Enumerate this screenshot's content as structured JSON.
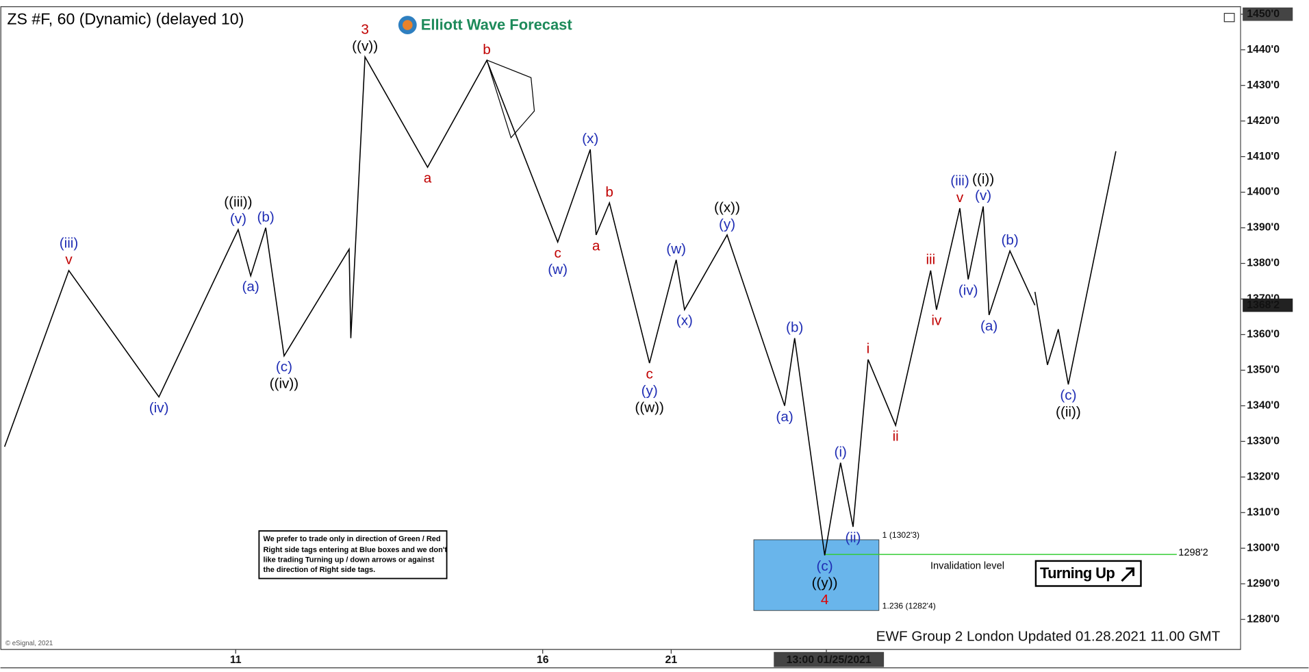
{
  "chart_data": {
    "type": "line",
    "title": "ZS #F, 60 (Dynamic) (delayed 10)",
    "logo": "Elliott Wave Forecast",
    "footer": "EWF Group 2 London Updated 01.28.2021 11.00 GMT",
    "credit": "© eSignal, 2021",
    "note": [
      "We prefer to trade only in direction of Green / Red",
      "Right side tags entering at Blue boxes and we don't",
      "like trading Turning up / down arrows or against",
      "the direction of Right side tags."
    ],
    "signal": "Turning Up",
    "xlim": [
      0,
      371.75
    ],
    "ylim": [
      1280,
      1450
    ],
    "xticks": [
      {
        "value": 70.5,
        "label": "11"
      },
      {
        "value": 162.5,
        "label": "16"
      },
      {
        "value": 201,
        "label": "21"
      },
      {
        "value": 247.5,
        "label": "13:00 01/25/2021"
      }
    ],
    "yticks": [
      {
        "value": 1280,
        "label": "1280'0"
      },
      {
        "value": 1290,
        "label": "1290'0"
      },
      {
        "value": 1300,
        "label": "1300'0"
      },
      {
        "value": 1310,
        "label": "1310'0"
      },
      {
        "value": 1320,
        "label": "1320'0"
      },
      {
        "value": 1330,
        "label": "1330'0"
      },
      {
        "value": 1340,
        "label": "1340'0"
      },
      {
        "value": 1350,
        "label": "1350'0"
      },
      {
        "value": 1360,
        "label": "1360'0"
      },
      {
        "value": 1370,
        "label": "1370'0"
      },
      {
        "value": 1380,
        "label": "1380'0"
      },
      {
        "value": 1390,
        "label": "1390'0"
      },
      {
        "value": 1400,
        "label": "1400'0"
      },
      {
        "value": 1410,
        "label": "1410'0"
      },
      {
        "value": 1420,
        "label": "1420'0"
      },
      {
        "value": 1430,
        "label": "1430'0"
      },
      {
        "value": 1440,
        "label": "1440'0"
      },
      {
        "value": 1450,
        "label": "1450'0"
      }
    ],
    "last_price": {
      "value": 1368.25,
      "label": "1368'2"
    },
    "blue_box": {
      "top": 1302.375,
      "top_label": "1 (1302'3)",
      "bottom": 1282.5,
      "bottom_label": "1.236 (1282'4)",
      "x": [
        225.75,
        263.25
      ]
    },
    "invalidation": {
      "value": 1298.25,
      "label": "1298'2",
      "text": "Invalidation level",
      "x": [
        247,
        352.5
      ],
      "color": "#33cc33"
    },
    "series": [
      {
        "name": "Price",
        "color": "#000000",
        "x": [
          1.25,
          20.5,
          47.5,
          71.25,
          75,
          79.5,
          85,
          104.5,
          105,
          109.25,
          128,
          145.75,
          167,
          176.75,
          178.5,
          182.5,
          194.5,
          202.5,
          205,
          217.75,
          235,
          238,
          247,
          251.75,
          255.5,
          260,
          268.25,
          278.75,
          280.5,
          287.5,
          290,
          294.5,
          296.25,
          302.5,
          310
        ],
        "values": [
          1328.5,
          1378,
          1342.5,
          1389.5,
          1376.5,
          1390,
          1354,
          1384,
          1359,
          1438,
          1407,
          1437,
          1386,
          1412,
          1388,
          1397,
          1352,
          1381,
          1367,
          1388,
          1340,
          1359,
          1298,
          1324,
          1306,
          1353,
          1334.5,
          1378,
          1367,
          1395.5,
          1375.5,
          1396,
          1365.5,
          1383.5,
          1368.25
        ],
        "point_labels": [
          null,
          [
            {
              "text": "v",
              "color": "#c00000"
            },
            {
              "text": "(iii)",
              "color": "#1f2db4"
            }
          ],
          [
            {
              "text": "(iv)",
              "color": "#1f2db4"
            }
          ],
          [
            {
              "text": "(v)",
              "color": "#1f2db4"
            },
            {
              "text": "((iii))",
              "color": "#000000"
            }
          ],
          [
            {
              "text": "(a)",
              "color": "#1f2db4"
            }
          ],
          [
            {
              "text": "(b)",
              "color": "#1f2db4"
            }
          ],
          [
            {
              "text": "(c)",
              "color": "#1f2db4"
            },
            {
              "text": "((iv))",
              "color": "#000000"
            }
          ],
          null,
          null,
          [
            {
              "text": "((v))",
              "color": "#000000"
            },
            {
              "text": "3",
              "color": "#c00000"
            }
          ],
          [
            {
              "text": "a",
              "color": "#c00000"
            }
          ],
          [
            {
              "text": "b",
              "color": "#c00000"
            }
          ],
          [
            {
              "text": "c",
              "color": "#c00000"
            },
            {
              "text": "(w)",
              "color": "#1f2db4"
            }
          ],
          [
            {
              "text": "(x)",
              "color": "#1f2db4"
            }
          ],
          [
            {
              "text": "a",
              "color": "#c00000"
            }
          ],
          [
            {
              "text": "b",
              "color": "#c00000"
            }
          ],
          [
            {
              "text": "c",
              "color": "#c00000"
            },
            {
              "text": "(y)",
              "color": "#1f2db4"
            },
            {
              "text": "((w))",
              "color": "#000000"
            }
          ],
          [
            {
              "text": "(w)",
              "color": "#1f2db4"
            }
          ],
          [
            {
              "text": "(x)",
              "color": "#1f2db4"
            }
          ],
          [
            {
              "text": "(y)",
              "color": "#1f2db4"
            },
            {
              "text": "((x))",
              "color": "#000000"
            }
          ],
          [
            {
              "text": "(a)",
              "color": "#1f2db4"
            }
          ],
          [
            {
              "text": "(b)",
              "color": "#1f2db4"
            }
          ],
          [
            {
              "text": "(c)",
              "color": "#1f2db4"
            },
            {
              "text": "((y))",
              "color": "#000000"
            },
            {
              "text": "4",
              "color": "#e00000"
            }
          ],
          [
            {
              "text": "(i)",
              "color": "#1f2db4"
            }
          ],
          [
            {
              "text": "(ii)",
              "color": "#1f2db4"
            }
          ],
          [
            {
              "text": "i",
              "color": "#c00000"
            }
          ],
          [
            {
              "text": "ii",
              "color": "#c00000"
            }
          ],
          [
            {
              "text": "iii",
              "color": "#c00000"
            }
          ],
          [
            {
              "text": "iv",
              "color": "#c00000"
            }
          ],
          [
            {
              "text": "v",
              "color": "#c00000"
            },
            {
              "text": "(iii)",
              "color": "#1f2db4"
            }
          ],
          [
            {
              "text": "(iv)",
              "color": "#1f2db4"
            }
          ],
          [
            {
              "text": "(v)",
              "color": "#1f2db4"
            },
            {
              "text": "((i))",
              "color": "#000000"
            }
          ],
          [
            {
              "text": "(a)",
              "color": "#1f2db4"
            }
          ],
          [
            {
              "text": "(b)",
              "color": "#1f2db4"
            }
          ],
          null
        ]
      },
      {
        "name": "Projection",
        "color": "#000000",
        "x": [
          310,
          313.75,
          317,
          320,
          334.25
        ],
        "values": [
          1372,
          1351.5,
          1361.5,
          1346,
          1411.5
        ],
        "point_labels": [
          null,
          null,
          null,
          [
            {
              "text": "(c)",
              "color": "#1f2db4"
            },
            {
              "text": "((ii))",
              "color": "#000000"
            }
          ],
          null
        ]
      }
    ]
  }
}
